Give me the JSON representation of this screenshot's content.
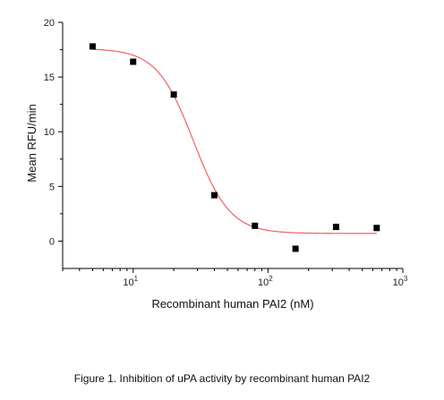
{
  "chart_data": {
    "type": "scatter",
    "xscale": "log",
    "xlim": [
      3,
      1000
    ],
    "ylim": [
      -2.5,
      20
    ],
    "xlabel": "Recombinant human PAI2 (nM)",
    "ylabel": "Mean RFU/min",
    "y_ticks": [
      0,
      5,
      10,
      15,
      20
    ],
    "y_tick_labels": [
      "0",
      "5",
      "10",
      "15",
      "20"
    ],
    "x_ticks": [
      10,
      100,
      1000
    ],
    "x_tick_base": "10",
    "x_tick_exponents": [
      "1",
      "2",
      "3"
    ],
    "grid": false,
    "series": [
      {
        "marker": "square",
        "color": "#000000",
        "x": [
          5,
          10,
          20,
          40,
          80,
          160,
          320,
          640
        ],
        "y": [
          17.8,
          16.4,
          13.4,
          4.2,
          1.4,
          -0.7,
          1.3,
          1.2
        ]
      }
    ],
    "fit_curve": {
      "model": "four-parameter logistic",
      "color": "#f06060",
      "top": 17.6,
      "bottom": 0.7,
      "ec50": 28,
      "hill": 3.2
    }
  },
  "caption": "Figure 1. Inhibition of uPA activity by recombinant human PAI2"
}
